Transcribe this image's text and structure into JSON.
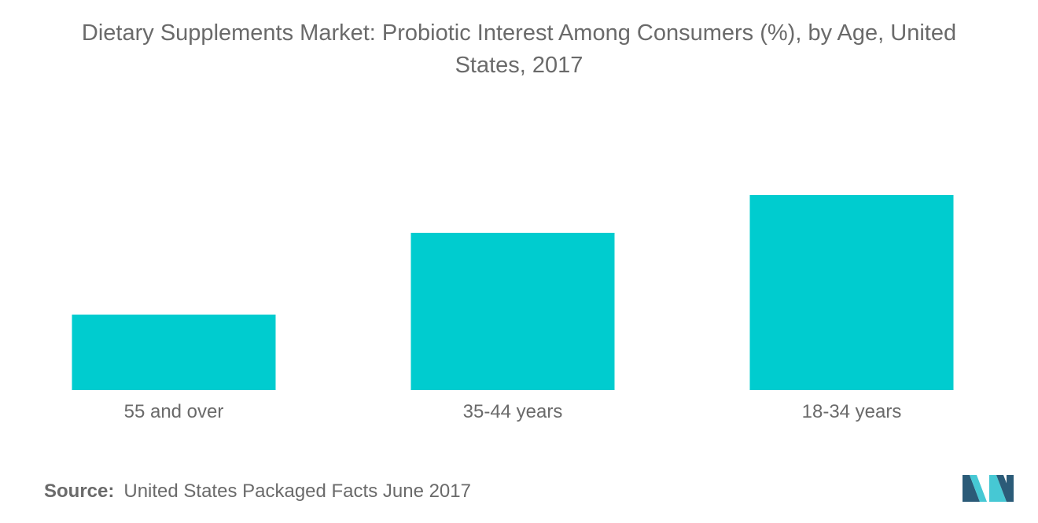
{
  "title_line1": "Dietary Supplements Market: Probiotic Interest Among Consumers (%), by Age, United",
  "title_line2": "States, 2017",
  "source": {
    "label": "Source:",
    "text": "United States Packaged Facts June 2017"
  },
  "colors": {
    "bar": "#00cccf",
    "text": "#6a6a6a",
    "logo_dark": "#2b5b78",
    "logo_light": "#46c8d4"
  },
  "chart_data": {
    "type": "bar",
    "categories": [
      "55 and over",
      "35-44 years",
      "18-34 years"
    ],
    "values": [
      12,
      25,
      31
    ],
    "ylim": [
      0,
      45
    ],
    "grid": false,
    "axes_visible": false,
    "xlabel": "",
    "ylabel": ""
  }
}
